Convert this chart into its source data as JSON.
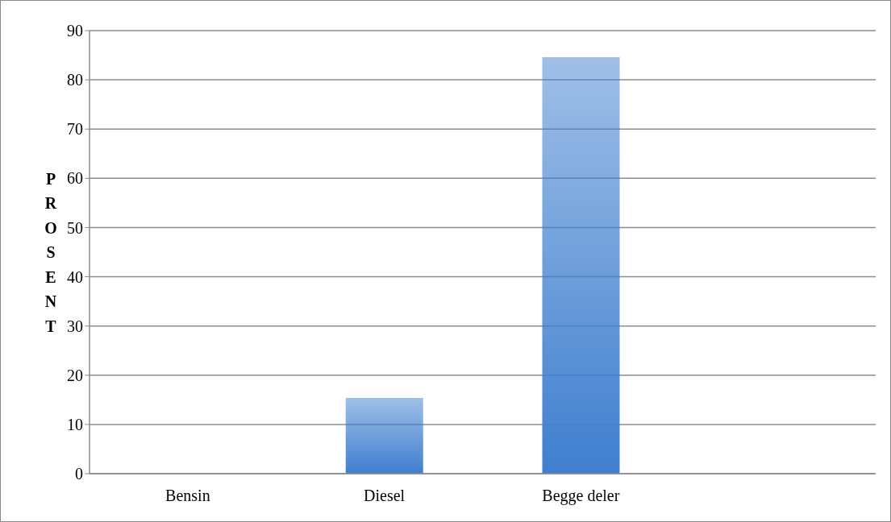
{
  "chart_data": {
    "type": "bar",
    "ylabel": "PROSENT",
    "categories": [
      "Bensin",
      "Diesel",
      "Begge deler",
      null
    ],
    "values": [
      0,
      15.4,
      84.6,
      null
    ],
    "color": "#3f7fcf",
    "ylim": [
      0,
      90
    ],
    "yticks": [
      0,
      10,
      20,
      30,
      40,
      50,
      60,
      70,
      80,
      90
    ],
    "grid": "y"
  }
}
